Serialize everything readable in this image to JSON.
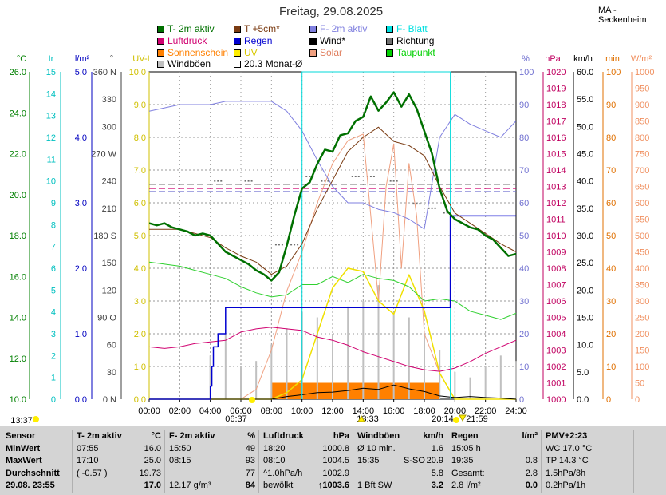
{
  "title": "Freitag, 29.08.2025",
  "station": "MA - Seckenheim",
  "legend": [
    {
      "label": "T- 2m aktiv",
      "color": "#007000"
    },
    {
      "label": "T +5cm*",
      "color": "#7a3b12"
    },
    {
      "label": "F- 2m aktiv",
      "color": "#7f7fdf"
    },
    {
      "label": "F- Blatt",
      "color": "#00e0e0"
    },
    {
      "label": "Luftdruck",
      "color": "#d00070"
    },
    {
      "label": "Regen",
      "color": "#0000d0"
    },
    {
      "label": "Wind*",
      "color": "#000000"
    },
    {
      "label": "Richtung",
      "color": "#707070"
    },
    {
      "label": "Sonnenschein",
      "color": "#ff8000"
    },
    {
      "label": "UV",
      "color": "#ffee00"
    },
    {
      "label": "Solar",
      "color": "#f0a080"
    },
    {
      "label": "Taupunkt",
      "color": "#00d000"
    },
    {
      "label": "Windböen",
      "color": "#c0c0c0"
    },
    {
      "label": "20.3 Monat-Ø",
      "color": "#ffffff"
    }
  ],
  "axes": {
    "temp": {
      "unit": "°C",
      "color": "#008000",
      "ticks": [
        "26.0",
        "24.0",
        "22.0",
        "20.0",
        "18.0",
        "16.0",
        "14.0",
        "12.0",
        "10.0"
      ]
    },
    "uvscale": {
      "unit": "Ir",
      "color": "#00c0c0",
      "ticks": [
        "15",
        "14",
        "13",
        "12",
        "11",
        "10",
        "9",
        "8",
        "7",
        "6",
        "5",
        "4",
        "3",
        "2",
        "1",
        "0"
      ]
    },
    "rain": {
      "unit": "l/m²",
      "color": "#0000c0",
      "ticks": [
        "5.0",
        "4.0",
        "3.0",
        "2.0",
        "1.0",
        "0.0"
      ]
    },
    "dir": {
      "unit": "°",
      "color": "#404040",
      "ticks": [
        "360 N",
        "330",
        "300",
        "270 W",
        "240",
        "210",
        "180 S",
        "150",
        "120",
        "90 O",
        "60",
        "30",
        "0 N"
      ]
    },
    "uv": {
      "unit": "UV-I",
      "color": "#d0c000",
      "ticks": [
        "10.0",
        "9.0",
        "8.0",
        "7.0",
        "6.0",
        "5.0",
        "4.0",
        "3.0",
        "2.0",
        "1.0",
        "0.0"
      ]
    },
    "hum": {
      "unit": "%",
      "color": "#7070d0",
      "ticks": [
        "100",
        "90",
        "80",
        "70",
        "60",
        "50",
        "40",
        "30",
        "20",
        "10",
        "0"
      ]
    },
    "press": {
      "unit": "hPa",
      "color": "#c00060",
      "ticks": [
        "1020",
        "1019",
        "1018",
        "1017",
        "1016",
        "1015",
        "1014",
        "1013",
        "1012",
        "1011",
        "1010",
        "1009",
        "1008",
        "1007",
        "1006",
        "1005",
        "1004",
        "1003",
        "1002",
        "1001",
        "1000"
      ]
    },
    "wind": {
      "unit": "km/h",
      "color": "#000000",
      "ticks": [
        "60.0",
        "55.0",
        "50.0",
        "45.0",
        "40.0",
        "35.0",
        "30.0",
        "25.0",
        "20.0",
        "15.0",
        "10.0",
        "5.0",
        "0.0"
      ]
    },
    "sunmin": {
      "unit": "min",
      "color": "#e07000",
      "ticks": [
        "100",
        "90",
        "80",
        "70",
        "60",
        "50",
        "40",
        "30",
        "20",
        "10",
        "0"
      ]
    },
    "solar": {
      "unit": "W/m²",
      "color": "#f09060",
      "ticks": [
        "1000",
        "950",
        "900",
        "850",
        "800",
        "750",
        "700",
        "650",
        "600",
        "550",
        "500",
        "450",
        "400",
        "350",
        "300",
        "250",
        "200",
        "150",
        "100",
        "50",
        "0"
      ]
    }
  },
  "xticks": [
    "00:00",
    "02:00",
    "04:00",
    "06:00",
    "08:00",
    "10:00",
    "12:00",
    "14:00",
    "16:00",
    "18:00",
    "20:00",
    "22:00",
    "24:00"
  ],
  "events": {
    "moonrise": "13:37",
    "sunrise": "06:37",
    "solar_noon": "13:33",
    "sunset": "20:14",
    "moonset": "21:59"
  },
  "chart_data": {
    "type": "line",
    "x_unit": "hours",
    "x_range": [
      0,
      24
    ],
    "series": [
      {
        "name": "T- 2m aktiv",
        "axis": "temp",
        "x": [
          0,
          0.5,
          1,
          1.5,
          2,
          2.5,
          3,
          3.5,
          4,
          4.5,
          5,
          5.5,
          6,
          6.5,
          7,
          7.5,
          8,
          8.5,
          9,
          9.5,
          10,
          10.5,
          11,
          11.5,
          12,
          12.5,
          13,
          13.5,
          14,
          14.5,
          15,
          15.5,
          16,
          16.5,
          17,
          17.5,
          18,
          18.5,
          19,
          19.5,
          20,
          20.5,
          21,
          21.5,
          22,
          22.5,
          23,
          23.5,
          24
        ],
        "values": [
          18.6,
          18.5,
          18.6,
          18.4,
          18.3,
          18.2,
          18.0,
          18.1,
          18.0,
          17.6,
          17.2,
          17.0,
          16.8,
          16.6,
          16.3,
          16.1,
          15.8,
          16.2,
          17.5,
          19.0,
          20.3,
          20.6,
          21.5,
          22.2,
          22.1,
          22.9,
          23.0,
          23.6,
          23.8,
          24.8,
          24.1,
          24.5,
          25.0,
          24.3,
          24.9,
          24.2,
          23.1,
          22.0,
          20.3,
          19.2,
          18.8,
          18.6,
          18.4,
          18.3,
          18.0,
          17.8,
          17.4,
          17.0,
          17.1
        ]
      },
      {
        "name": "T +5cm*",
        "axis": "temp",
        "x": [
          0,
          1,
          2,
          3,
          4,
          5,
          6,
          7,
          8,
          9,
          10,
          11,
          12,
          13,
          14,
          15,
          16,
          17,
          18,
          19,
          20,
          21,
          22,
          23,
          24
        ],
        "values": [
          18.3,
          18.3,
          18.3,
          18.1,
          17.9,
          17.4,
          17.0,
          16.7,
          16.1,
          16.5,
          17.6,
          19.3,
          20.7,
          22.1,
          22.8,
          23.3,
          22.6,
          22.4,
          21.9,
          20.4,
          19.1,
          18.6,
          18.1,
          17.6,
          17.2
        ]
      },
      {
        "name": "F- 2m aktiv",
        "axis": "hum",
        "x": [
          0,
          1,
          2,
          3,
          4,
          5,
          6,
          7,
          8,
          9,
          10,
          11,
          12,
          13,
          14,
          15,
          16,
          17,
          18,
          19,
          20,
          21,
          22,
          23,
          24
        ],
        "values": [
          88,
          89,
          90,
          90,
          90,
          91,
          91,
          91,
          91,
          88,
          82,
          73,
          65,
          60,
          60,
          58,
          57,
          55,
          52,
          80,
          87,
          84,
          82,
          80,
          85
        ]
      },
      {
        "name": "F- Blatt",
        "axis": "hum",
        "x": [
          10.0,
          10.0,
          10.0,
          19.7,
          19.7,
          19.7
        ],
        "values": [
          0,
          100,
          100,
          100,
          100,
          0
        ]
      },
      {
        "name": "Luftdruck",
        "axis": "press",
        "x": [
          0,
          1,
          2,
          3,
          4,
          5,
          6,
          7,
          8,
          9,
          10,
          11,
          12,
          13,
          14,
          15,
          16,
          17,
          18,
          19,
          20,
          21,
          22,
          23,
          24
        ],
        "values": [
          1003.2,
          1003.1,
          1003.2,
          1003.4,
          1003.5,
          1003.6,
          1004.1,
          1004.3,
          1004.4,
          1004.3,
          1004.2,
          1003.8,
          1003.6,
          1003.3,
          1002.9,
          1002.6,
          1002.3,
          1002.0,
          1001.8,
          1001.7,
          1001.9,
          1002.3,
          1002.8,
          1003.2,
          1003.6
        ]
      },
      {
        "name": "Regen",
        "axis": "rain",
        "x": [
          0,
          3.9,
          4.0,
          4.1,
          4.2,
          4.5,
          5.0,
          19.7,
          19.7,
          19.8,
          20.0,
          24
        ],
        "values": [
          0,
          0,
          0.2,
          0.5,
          0.8,
          1.0,
          1.4,
          1.4,
          2.8,
          2.8,
          2.8,
          2.8
        ]
      },
      {
        "name": "Taupunkt",
        "axis": "temp",
        "x": [
          0,
          1,
          2,
          3,
          4,
          5,
          6,
          7,
          8,
          9,
          10,
          11,
          12,
          13,
          14,
          15,
          16,
          17,
          18,
          19,
          20,
          21,
          22,
          23,
          24
        ],
        "values": [
          16.7,
          16.6,
          16.5,
          16.3,
          16.1,
          15.9,
          15.5,
          15.2,
          15.0,
          15.1,
          15.6,
          15.6,
          16.0,
          15.7,
          16.1,
          15.9,
          15.8,
          15.5,
          14.8,
          14.9,
          14.8,
          14.3,
          14.1,
          13.9,
          14.2
        ]
      },
      {
        "name": "Solar",
        "axis": "solar",
        "x": [
          0,
          6,
          7,
          8,
          9,
          10,
          11,
          12,
          13,
          14,
          14.5,
          15,
          15.5,
          16,
          16.5,
          17,
          17.5,
          18,
          19,
          20,
          24
        ],
        "values": [
          0,
          0,
          30,
          150,
          330,
          450,
          600,
          720,
          790,
          810,
          560,
          300,
          650,
          780,
          400,
          720,
          560,
          200,
          80,
          0,
          0
        ]
      },
      {
        "name": "UV",
        "axis": "uv",
        "x": [
          0,
          8,
          9,
          10,
          11,
          12,
          13,
          14,
          15,
          16,
          17,
          18,
          19,
          20,
          24
        ],
        "values": [
          0,
          0,
          0.2,
          0.6,
          2.0,
          3.4,
          4.0,
          3.9,
          3.0,
          2.6,
          3.8,
          2.7,
          0.8,
          0,
          0
        ]
      },
      {
        "name": "Wind*",
        "axis": "wind",
        "x": [
          0,
          8,
          9,
          10,
          11,
          12,
          13,
          14,
          15,
          16,
          17,
          18,
          19,
          20,
          21,
          22,
          23,
          24
        ],
        "values": [
          0,
          0,
          0.5,
          0.8,
          1.2,
          1.3,
          1.6,
          2.0,
          1.8,
          2.6,
          1.9,
          1.4,
          0.6,
          0.3,
          0.5,
          0.3,
          0.2,
          0
        ]
      },
      {
        "name": "Windböen",
        "axis": "wind",
        "x": [
          0,
          3,
          4,
          5,
          6,
          7,
          8,
          9,
          10,
          11,
          12,
          13,
          14,
          15,
          16,
          17,
          18,
          19,
          20,
          21,
          22,
          23,
          24
        ],
        "values": [
          0,
          0,
          8,
          12,
          6,
          7,
          10,
          13,
          16,
          15,
          12,
          17,
          18,
          20.9,
          16,
          15,
          12,
          9,
          5,
          4,
          6,
          8,
          7
        ]
      },
      {
        "name": "Richtung",
        "axis": "dir",
        "x": [
          4.5,
          6.5,
          8.5,
          9.5,
          10.5,
          11.5,
          13.5,
          14.5,
          16,
          17.5,
          18.5,
          19.5
        ],
        "values": [
          240,
          240,
          170,
          170,
          245,
          240,
          245,
          245,
          240,
          215,
          210,
          205
        ]
      },
      {
        "name": "Sonnenschein",
        "axis": "sunmin",
        "x": [
          8,
          9,
          10,
          11,
          12,
          13,
          14,
          15,
          16,
          16.5,
          17,
          17.5,
          18,
          18.5
        ],
        "values": [
          5,
          5,
          5,
          5,
          5,
          5,
          5,
          5,
          5,
          3,
          5,
          3,
          5,
          0
        ]
      }
    ]
  },
  "summary": {
    "c1": {
      "h": "Sensor",
      "min": "MinWert",
      "max": "MaxWert",
      "avg": "Durchschnitt",
      "foot": "29.08.  23:55"
    },
    "c2": {
      "h": "T- 2m aktiv",
      "u": "°C",
      "min_t": "07:55",
      "min_v": "16.0",
      "max_t": "17:10",
      "max_v": "25.0",
      "avg_t": "( -0.57 )",
      "avg_v": "19.73",
      "foot_v": "17.0"
    },
    "c3": {
      "h": "F- 2m aktiv",
      "u": "%",
      "min_t": "15:50",
      "min_v": "49",
      "max_t": "08:15",
      "max_v": "93",
      "avg_v": "77",
      "foot_t": "12.17 g/m³",
      "foot_v": "84"
    },
    "c4": {
      "h": "Luftdruck",
      "u": "hPa",
      "min_t": "18:20",
      "min_v": "1000.8",
      "max_t": "08:10",
      "max_v": "1004.5",
      "avg_t": "^1.0hPa/h",
      "avg_v": "1002.9",
      "foot_t": "bewölkt",
      "foot_v": "1003.6"
    },
    "c5": {
      "h": "Windböen",
      "u": "km/h",
      "min_t": "Ø 10 min.",
      "min_v": "1.6",
      "max_t": "15:35",
      "max_m": "S-SO",
      "max_v": "20.9",
      "avg_v": "5.8",
      "foot_t": "1 Bft SW",
      "foot_v": "3.2"
    },
    "c6": {
      "h": "Regen",
      "u": "l/m²",
      "min_t": "15:05 h",
      "max_t": "19:35",
      "max_v": "0.8",
      "avg_t": "Gesamt:",
      "avg_v": "2.8",
      "foot_t": "2.8 l/m²",
      "foot_v": "0.0"
    },
    "c7": {
      "h": "PMV+2:23",
      "l2": "WC 17.0 °C",
      "l3": "TP 14.3 °C",
      "l4": "1.5hPa/3h",
      "l5": "0.2hPa/1h"
    }
  }
}
